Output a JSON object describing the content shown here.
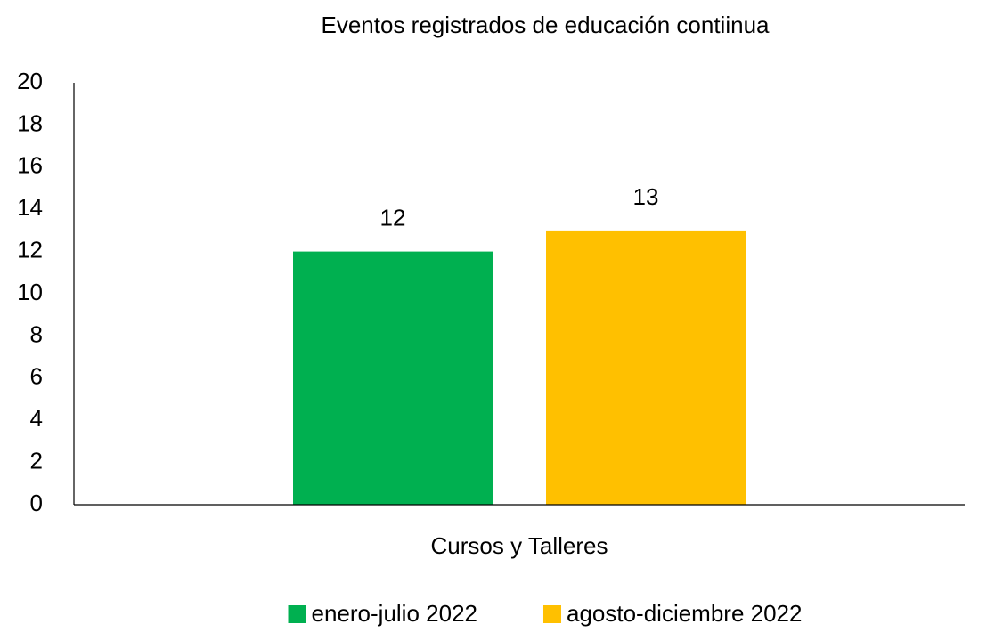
{
  "chart_data": {
    "type": "bar",
    "title": "Eventos registrados de educación contiinua",
    "categories": [
      "Cursos y Talleres"
    ],
    "series": [
      {
        "name": "enero-julio 2022",
        "color": "#00b050",
        "values": [
          12
        ]
      },
      {
        "name": "agosto-diciembre 2022",
        "color": "#ffc000",
        "values": [
          13
        ]
      }
    ],
    "ylim": [
      0,
      20
    ],
    "yticks": [
      0,
      2,
      4,
      6,
      8,
      10,
      12,
      14,
      16,
      18,
      20
    ],
    "grid": false,
    "legend": "bottom"
  }
}
